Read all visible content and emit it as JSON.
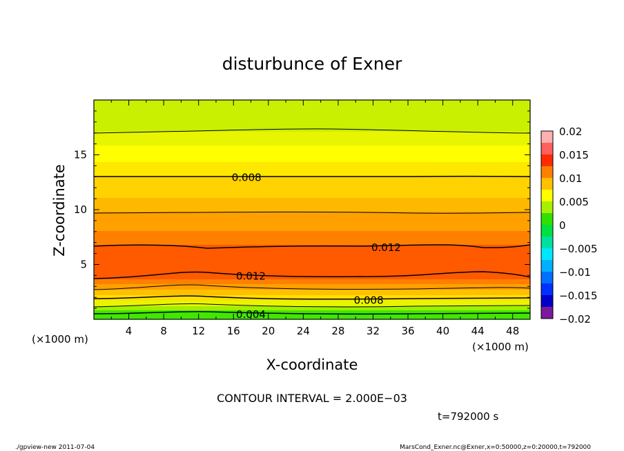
{
  "chart_data": {
    "type": "contour",
    "title": "disturbunce of Exner",
    "xlabel": "X-coordinate",
    "ylabel": "Z-coordinate",
    "x_unit_label": "(×1000 m)",
    "z_unit_label": "(×1000 m)",
    "xlim": [
      0,
      50
    ],
    "zlim": [
      0,
      20
    ],
    "x_ticks": [
      4,
      8,
      12,
      16,
      20,
      24,
      28,
      32,
      36,
      40,
      44,
      48
    ],
    "z_ticks": [
      5,
      10,
      15
    ],
    "colorbar": {
      "levels": [
        0.02,
        0.015,
        0.01,
        0.005,
        0,
        -0.005,
        -0.01,
        -0.015,
        -0.02
      ],
      "labels": [
        "0.02",
        "0.015",
        "0.01",
        "0.005",
        "0",
        "−0.005",
        "−0.01",
        "−0.015",
        "−0.02"
      ]
    },
    "contour_labels": [
      {
        "text": "0.008",
        "x": 17.5,
        "z": 13.0
      },
      {
        "text": "0.012",
        "x": 33.5,
        "z": 6.6
      },
      {
        "text": "0.012",
        "x": 18,
        "z": 4.0
      },
      {
        "text": "0.008",
        "x": 31.5,
        "z": 1.8
      },
      {
        "text": "0.004",
        "x": 18,
        "z": 0.5
      }
    ],
    "contour_interval_text": "CONTOUR INTERVAL = 2.000E−03",
    "time_text": "t=792000 s"
  },
  "footer": {
    "left": "./gpview-new   2011-07-04",
    "right": "MarsCond_Exner.nc@Exner,x=0:50000,z=0:20000,t=792000"
  }
}
